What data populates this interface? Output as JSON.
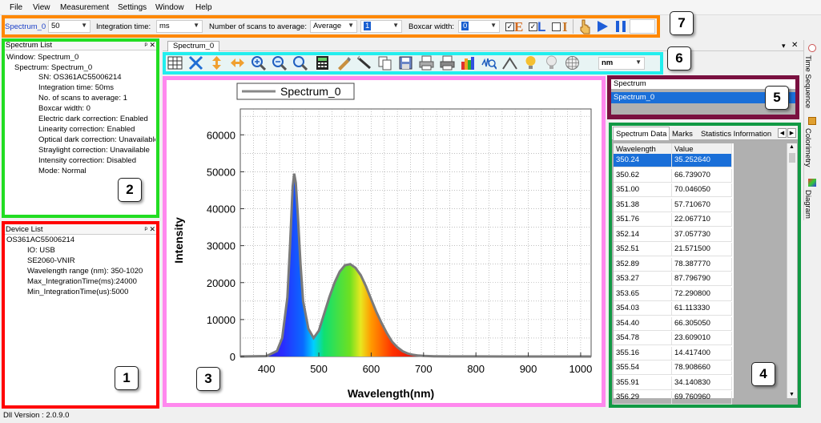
{
  "menu": [
    "File",
    "View",
    "Measurement",
    "Settings",
    "Window",
    "Help"
  ],
  "toolbar": {
    "spectrum_name": "Spectrum_0",
    "integration_value": "50",
    "integration_label": "Integration time:",
    "integration_unit": "ms",
    "scans_label": "Number of scans to average:",
    "scans_mode": "Average",
    "scans_value": "1",
    "boxcar_label": "Boxcar width:",
    "boxcar_value": "0",
    "check_e": "✓",
    "check_l": "✓",
    "letter_e": "E",
    "letter_l": "L",
    "letter_i": "I"
  },
  "spectrum_list": {
    "title": "Spectrum List",
    "items": [
      "Window: Spectrum_0",
      "Spectrum: Spectrum_0",
      "SN: OS361AC55006214",
      "Integration time: 50ms",
      "No. of scans to average: 1",
      "Boxcar width: 0",
      "Electric dark correction: Enabled",
      "Linearity correction: Enabled",
      "Optical dark correction: Unavailable",
      "Straylight correction: Unavailable",
      "Intensity correction: Disabled",
      "Mode: Normal"
    ]
  },
  "device_list": {
    "title": "Device List",
    "items": [
      "OS361AC55006214",
      "IO: USB",
      "SE2060-VNIR",
      "Wavelength range (nm): 350-1020",
      "Max_IntegrationTime(ms):24000",
      "Min_IntegrationTime(us):5000"
    ]
  },
  "chart_tab": "Spectrum_0",
  "unit_select": "nm",
  "spectrum_box": {
    "header": "Spectrum",
    "selected": "Spectrum_0"
  },
  "data_tabs": [
    "Spectrum Data",
    "Marks",
    "Statistics Information"
  ],
  "data_table": {
    "headers": [
      "Wavelength",
      "Value"
    ],
    "rows": [
      [
        "350.24",
        "35.252640"
      ],
      [
        "350.62",
        "66.739070"
      ],
      [
        "351.00",
        "70.046050"
      ],
      [
        "351.38",
        "57.710670"
      ],
      [
        "351.76",
        "22.067710"
      ],
      [
        "352.14",
        "37.057730"
      ],
      [
        "352.51",
        "21.571500"
      ],
      [
        "352.89",
        "78.387770"
      ],
      [
        "353.27",
        "87.796790"
      ],
      [
        "353.65",
        "72.290800"
      ],
      [
        "354.03",
        "61.113330"
      ],
      [
        "354.40",
        "66.305050"
      ],
      [
        "354.78",
        "23.609010"
      ],
      [
        "355.16",
        "14.417400"
      ],
      [
        "355.54",
        "78.908660"
      ],
      [
        "355.91",
        "34.140830"
      ],
      [
        "356.29",
        "69.760960"
      ]
    ]
  },
  "side_tabs": [
    "Time Sequence",
    "Colorimetry",
    "Diagram"
  ],
  "status": "Dll Version : 2.0.9.0",
  "badges": [
    "1",
    "2",
    "3",
    "4",
    "5",
    "6",
    "7"
  ],
  "annotation_colors": {
    "device": "#ff0000",
    "spectrum_list": "#22dd22",
    "chart": "#ff88ee",
    "data": "#119944",
    "spectrum_box": "#7a1040",
    "tool_icons": "#22eeee",
    "toolbar": "#ff8800"
  },
  "chart_data": {
    "type": "area",
    "legend": "Spectrum_0",
    "xlabel": "Wavelength(nm)",
    "ylabel": "Intensity",
    "xlim": [
      350,
      1020
    ],
    "ylim": [
      0,
      67000
    ],
    "xticks": [
      400,
      500,
      600,
      700,
      800,
      900,
      1000
    ],
    "yticks": [
      0,
      10000,
      20000,
      30000,
      40000,
      50000,
      60000
    ],
    "grid": true,
    "x": [
      350,
      400,
      420,
      430,
      440,
      445,
      450,
      453,
      456,
      460,
      465,
      470,
      480,
      490,
      500,
      510,
      520,
      530,
      540,
      550,
      560,
      570,
      580,
      590,
      600,
      610,
      620,
      630,
      640,
      650,
      660,
      670,
      680,
      690,
      700,
      720,
      750,
      800,
      900,
      1000,
      1020
    ],
    "values": [
      0,
      100,
      1500,
      5000,
      16000,
      30000,
      46000,
      49500,
      47000,
      38000,
      25000,
      15000,
      7500,
      5000,
      7000,
      11500,
      16000,
      20000,
      23000,
      24700,
      25000,
      24000,
      22000,
      19000,
      15500,
      12000,
      9000,
      6300,
      4000,
      2500,
      1400,
      800,
      450,
      250,
      150,
      60,
      30,
      20,
      10,
      5,
      0
    ]
  }
}
